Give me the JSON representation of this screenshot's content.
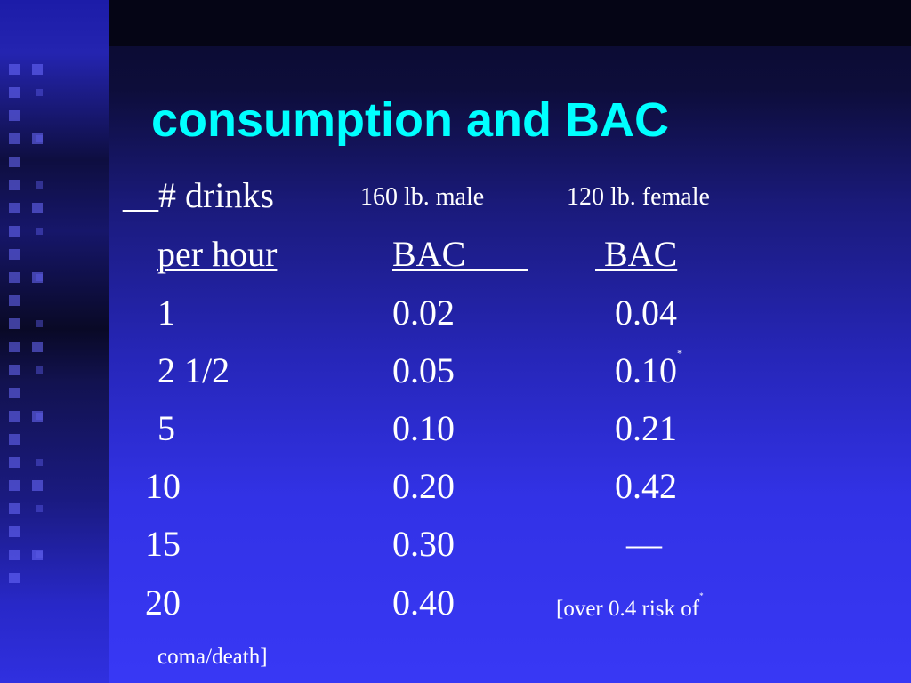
{
  "slide": {
    "title": "consumption and BAC",
    "header": {
      "col1": "__# drinks",
      "col2": "160 lb. male",
      "col3": "120 lb. female"
    },
    "subheader": {
      "col1": "per hour",
      "col2": "BAC       ",
      "col3": " BAC"
    },
    "rows": [
      {
        "drinks": "1",
        "male_bac": "0.02",
        "female_bac": "0.04",
        "female_mark": ""
      },
      {
        "drinks": "2 1/2",
        "male_bac": "0.05",
        "female_bac": "0.10",
        "female_mark": "*"
      },
      {
        "drinks": "5",
        "male_bac": "0.10",
        "female_bac": "0.21",
        "female_mark": ""
      },
      {
        "drinks": "10",
        "male_bac": "0.20",
        "female_bac": "0.42",
        "female_mark": ""
      },
      {
        "drinks": "15",
        "male_bac": "0.30",
        "female_bac": "—",
        "female_mark": ""
      },
      {
        "drinks": "20",
        "male_bac": "0.40",
        "female_bac": "",
        "female_mark": ""
      }
    ],
    "note_line1": "[over 0.4 risk of",
    "note_mark": "*",
    "note_line2": "coma/death]"
  },
  "colors": {
    "title": "#00ffff",
    "text": "#ffffff",
    "background_top": "#0b0b2e",
    "background_bottom": "#3838f5"
  }
}
